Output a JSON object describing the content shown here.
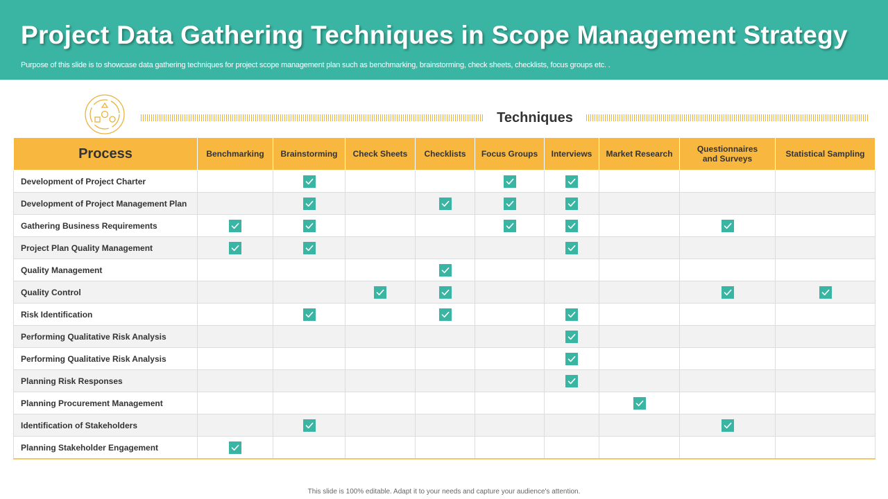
{
  "title": "Project Data Gathering Techniques in Scope Management Strategy",
  "subtitle": "Purpose of this slide is to showcase data gathering techniques for project scope management plan such as benchmarking, brainstorming, check sheets, checklists, focus groups etc. .",
  "techniques_label": "Techniques",
  "colors": {
    "header_bg": "#3bb5a3",
    "table_header_bg": "#f8b840",
    "check": "#3bb5a3",
    "accent_lines": "#e9b23c"
  },
  "logo_icon": "cycle-process-icon",
  "table": {
    "process_header": "Process",
    "columns": [
      "Benchmarking",
      "Brainstorming",
      "Check Sheets",
      "Checklists",
      "Focus Groups",
      "Interviews",
      "Market Research",
      "Questionnaires and Surveys",
      "Statistical Sampling"
    ],
    "rows": [
      {
        "process": "Development of Project Charter",
        "checks": [
          false,
          true,
          false,
          false,
          true,
          true,
          false,
          false,
          false
        ]
      },
      {
        "process": "Development of Project Management Plan",
        "checks": [
          false,
          true,
          false,
          true,
          true,
          true,
          false,
          false,
          false
        ]
      },
      {
        "process": "Gathering Business Requirements",
        "checks": [
          true,
          true,
          false,
          false,
          true,
          true,
          false,
          true,
          false
        ]
      },
      {
        "process": "Project Plan Quality Management",
        "checks": [
          true,
          true,
          false,
          false,
          false,
          true,
          false,
          false,
          false
        ]
      },
      {
        "process": "Quality Management",
        "checks": [
          false,
          false,
          false,
          true,
          false,
          false,
          false,
          false,
          false
        ]
      },
      {
        "process": "Quality Control",
        "checks": [
          false,
          false,
          true,
          true,
          false,
          false,
          false,
          true,
          true
        ]
      },
      {
        "process": "Risk Identification",
        "checks": [
          false,
          true,
          false,
          true,
          false,
          true,
          false,
          false,
          false
        ]
      },
      {
        "process": "Performing Qualitative Risk Analysis",
        "checks": [
          false,
          false,
          false,
          false,
          false,
          true,
          false,
          false,
          false
        ]
      },
      {
        "process": "Performing Qualitative Risk Analysis",
        "checks": [
          false,
          false,
          false,
          false,
          false,
          true,
          false,
          false,
          false
        ]
      },
      {
        "process": "Planning Risk Responses",
        "checks": [
          false,
          false,
          false,
          false,
          false,
          true,
          false,
          false,
          false
        ]
      },
      {
        "process": "Planning Procurement Management",
        "checks": [
          false,
          false,
          false,
          false,
          false,
          false,
          true,
          false,
          false
        ]
      },
      {
        "process": "Identification of Stakeholders",
        "checks": [
          false,
          true,
          false,
          false,
          false,
          false,
          false,
          true,
          false
        ]
      },
      {
        "process": "Planning Stakeholder Engagement",
        "checks": [
          true,
          false,
          false,
          false,
          false,
          false,
          false,
          false,
          false
        ]
      }
    ]
  },
  "footer": "This slide is 100% editable. Adapt it to your needs and capture your audience's attention."
}
